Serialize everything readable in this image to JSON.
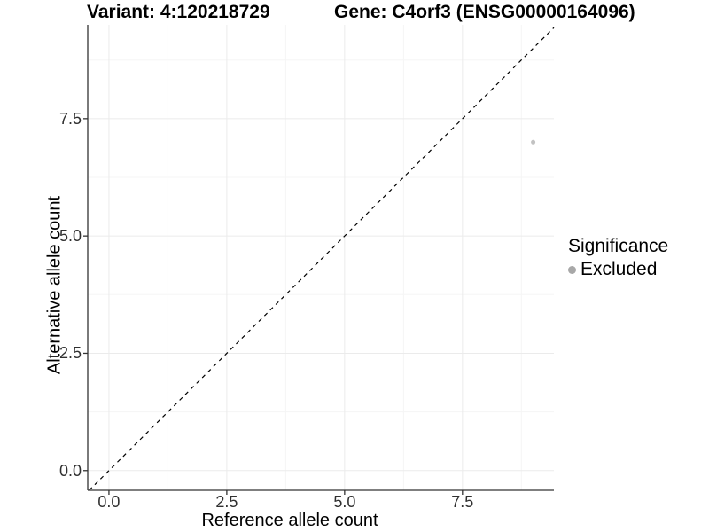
{
  "chart_data": {
    "type": "scatter",
    "titles": {
      "variant": "Variant: 4:120218729",
      "gene": "Gene: C4orf3 (ENSG00000164096)"
    },
    "xlabel": "Reference allele count",
    "ylabel": "Alternative allele count",
    "xlim": [
      -0.45,
      9.44
    ],
    "ylim": [
      -0.42,
      9.5
    ],
    "xticks": {
      "values": [
        0,
        2.5,
        5,
        7.5
      ],
      "labels": [
        "0.0",
        "2.5",
        "5.0",
        "7.5"
      ]
    },
    "yticks": {
      "values": [
        0,
        2.5,
        5,
        7.5
      ],
      "labels": [
        "0.0",
        "2.5",
        "5.0",
        "7.5"
      ]
    },
    "minor_ticks": [
      1.25,
      3.75,
      6.25,
      8.75
    ],
    "grid": "major+minor",
    "series": [
      {
        "name": "Excluded",
        "color": "#c2c2c2",
        "point_radius": 2.5,
        "points": [
          {
            "x": 9,
            "y": 7
          }
        ]
      }
    ],
    "reference_line": {
      "kind": "identity y=x",
      "style": "dashed",
      "color": "#000000"
    },
    "legend": {
      "title": "Significance",
      "position": "right",
      "entries": [
        {
          "label": "Excluded",
          "marker_color": "#a8a8a8"
        }
      ]
    }
  },
  "style": {
    "background": "#ffffff",
    "grid_major_color": "#ebebeb",
    "grid_minor_color": "#f5f5f5",
    "axis_line_color": "#333333",
    "tick_color": "#333333",
    "tick_label_color": "#303030",
    "text_color": "#000000"
  }
}
